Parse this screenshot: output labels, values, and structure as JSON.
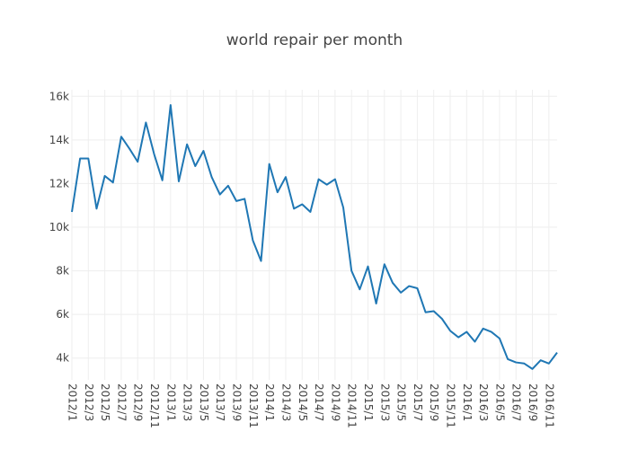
{
  "chart_data": {
    "type": "line",
    "title": "world repair per month",
    "xlabel": "",
    "ylabel": "",
    "ylim": [
      3000,
      16300
    ],
    "yticks": [
      4000,
      6000,
      8000,
      10000,
      12000,
      14000,
      16000
    ],
    "ytick_labels": [
      "4k",
      "6k",
      "8k",
      "10k",
      "12k",
      "14k",
      "16k"
    ],
    "xtick_labels": [
      "2012/1",
      "2012/3",
      "2012/5",
      "2012/7",
      "2012/9",
      "2012/11",
      "2013/1",
      "2013/3",
      "2013/5",
      "2013/7",
      "2013/9",
      "2013/11",
      "2014/1",
      "2014/3",
      "2014/5",
      "2014/7",
      "2014/9",
      "2014/11",
      "2015/1",
      "2015/3",
      "2015/5",
      "2015/7",
      "2015/9",
      "2015/11",
      "2016/1",
      "2016/3",
      "2016/5",
      "2016/7",
      "2016/9",
      "2016/11"
    ],
    "grid": true,
    "legend": "none",
    "line_color": "#1f77b4",
    "x": [
      "2012/1",
      "2012/2",
      "2012/3",
      "2012/4",
      "2012/5",
      "2012/6",
      "2012/7",
      "2012/8",
      "2012/9",
      "2012/10",
      "2012/11",
      "2012/12",
      "2013/1",
      "2013/2",
      "2013/3",
      "2013/4",
      "2013/5",
      "2013/6",
      "2013/7",
      "2013/8",
      "2013/9",
      "2013/10",
      "2013/11",
      "2013/12",
      "2014/1",
      "2014/2",
      "2014/3",
      "2014/4",
      "2014/5",
      "2014/6",
      "2014/7",
      "2014/8",
      "2014/9",
      "2014/10",
      "2014/11",
      "2014/12",
      "2015/1",
      "2015/2",
      "2015/3",
      "2015/4",
      "2015/5",
      "2015/6",
      "2015/7",
      "2015/8",
      "2015/9",
      "2015/10",
      "2015/11",
      "2015/12",
      "2016/1",
      "2016/2",
      "2016/3",
      "2016/4",
      "2016/5",
      "2016/6",
      "2016/7",
      "2016/8",
      "2016/9",
      "2016/10",
      "2016/11",
      "2016/12"
    ],
    "values": [
      10700,
      13150,
      13150,
      10850,
      12350,
      12050,
      14150,
      13600,
      13000,
      14800,
      13350,
      12150,
      15600,
      12100,
      13800,
      12800,
      13500,
      12300,
      11500,
      11900,
      11200,
      11300,
      9400,
      8450,
      12900,
      11600,
      12300,
      10850,
      11050,
      10700,
      12200,
      11950,
      12200,
      10900,
      8000,
      7150,
      8200,
      6500,
      8300,
      7450,
      7000,
      7300,
      7200,
      6100,
      6150,
      5800,
      5250,
      4950,
      5200,
      4750,
      5350,
      5200,
      4900,
      3950,
      3800,
      3750,
      3500,
      3900,
      3750,
      4250
    ]
  }
}
